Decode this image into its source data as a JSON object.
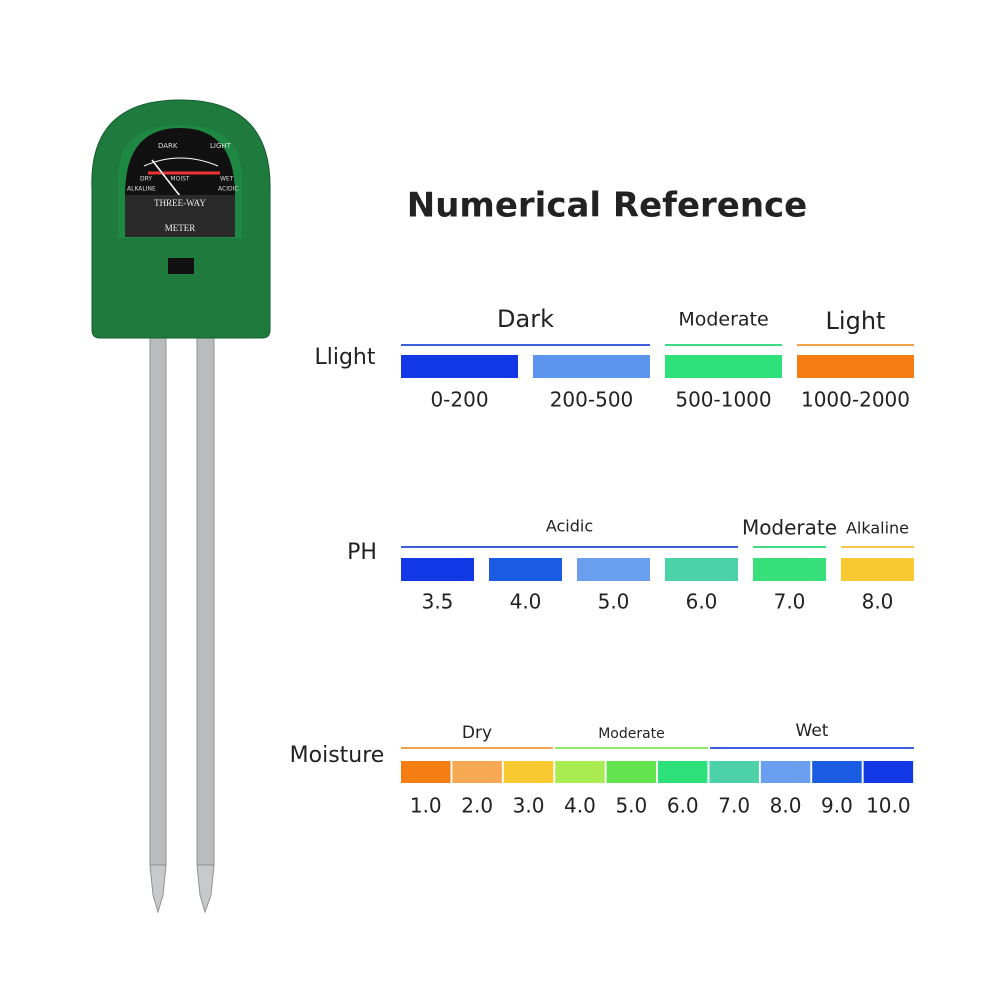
{
  "title": "Numerical Reference",
  "meter": {
    "top_left": "DARK",
    "top_right": "LIGHT",
    "left": "DRY",
    "middle": "MOIST",
    "right": "WET",
    "bottom_left": "ALKALINE",
    "bottom_right": "ACIDIC",
    "brand": "THREE-WAY",
    "name": "METER"
  },
  "rows": [
    {
      "label": "Llight",
      "groups": [
        {
          "text": "Dark",
          "color": "#3d5fdb"
        },
        {
          "text": "Moderate",
          "color": "#3ddc84"
        },
        {
          "text": "Light",
          "color": "#f7a04b"
        }
      ],
      "swatches": [
        {
          "label": "0-200",
          "color": "#1339e6"
        },
        {
          "label": "200-500",
          "color": "#5b95ee"
        },
        {
          "label": "500-1000",
          "color": "#2ee07a"
        },
        {
          "label": "1000-2000",
          "color": "#f57d12"
        }
      ]
    },
    {
      "label": "PH",
      "groups": [
        {
          "text": "Acidic",
          "color": "#3d5fdb"
        },
        {
          "text": "Moderate",
          "color": "#3ddc84"
        },
        {
          "text": "Alkaline",
          "color": "#f7c64b"
        }
      ],
      "swatches": [
        {
          "label": "3.5",
          "color": "#1339e6"
        },
        {
          "label": "4.0",
          "color": "#1c5ce3"
        },
        {
          "label": "5.0",
          "color": "#6a9ff0"
        },
        {
          "label": "6.0",
          "color": "#4dd1a9"
        },
        {
          "label": "7.0",
          "color": "#37e07a"
        },
        {
          "label": "8.0",
          "color": "#f9c932"
        }
      ]
    },
    {
      "label": "Moisture",
      "groups": [
        {
          "text": "Dry",
          "color": "#f7a04b"
        },
        {
          "text": "Moderate",
          "color": "#8ee86a"
        },
        {
          "text": "Wet",
          "color": "#3d5fdb"
        }
      ],
      "swatches": [
        {
          "label": "1.0",
          "color": "#f57d12"
        },
        {
          "label": "2.0",
          "color": "#f7a852"
        },
        {
          "label": "3.0",
          "color": "#f9c932"
        },
        {
          "label": "4.0",
          "color": "#a8ec52"
        },
        {
          "label": "5.0",
          "color": "#63e34e"
        },
        {
          "label": "6.0",
          "color": "#2ee07a"
        },
        {
          "label": "7.0",
          "color": "#4dd1a9"
        },
        {
          "label": "8.0",
          "color": "#6a9ff0"
        },
        {
          "label": "9.0",
          "color": "#1c5ce3"
        },
        {
          "label": "10.0",
          "color": "#1339e6"
        }
      ]
    }
  ]
}
